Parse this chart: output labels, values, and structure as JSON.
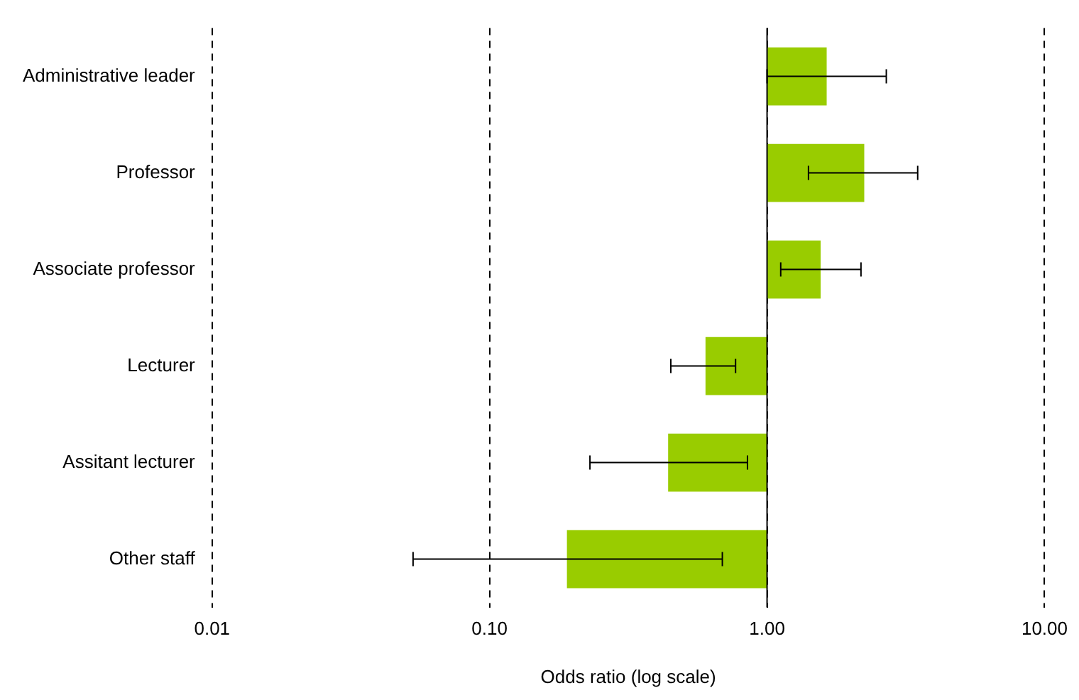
{
  "chart_data": {
    "type": "bar",
    "orientation": "horizontal",
    "log": "x",
    "xlabel": "Odds ratio (log scale)",
    "categories": [
      "Administrative leader",
      "Professor",
      "Associate professor",
      "Lecturer",
      "Assitant lecturer",
      "Other staff"
    ],
    "values": [
      0.64,
      1.24,
      0.56,
      -0.4,
      -0.56,
      -0.81
    ],
    "base": [
      1,
      1,
      1,
      1,
      1,
      1
    ],
    "errors": [
      [
        1.0,
        2.69
      ],
      [
        1.41,
        3.49
      ],
      [
        1.12,
        2.18
      ],
      [
        0.45,
        0.77
      ],
      [
        0.23,
        0.85
      ],
      [
        0.053,
        0.69
      ]
    ],
    "color": "#99cc00",
    "xlim": [
      0.01,
      10
    ],
    "xticks": [
      {
        "value": 0.01,
        "label": "0.01"
      },
      {
        "value": 0.1,
        "label": "0.10"
      },
      {
        "value": 1,
        "label": "1.00"
      },
      {
        "value": 10,
        "label": "10.00"
      }
    ],
    "grid": "x",
    "line_style": "dashed",
    "legend": false,
    "ref_lines": [
      {
        "axis": "x",
        "value": 1,
        "color": "#000000",
        "line_style": "solid"
      }
    ]
  }
}
